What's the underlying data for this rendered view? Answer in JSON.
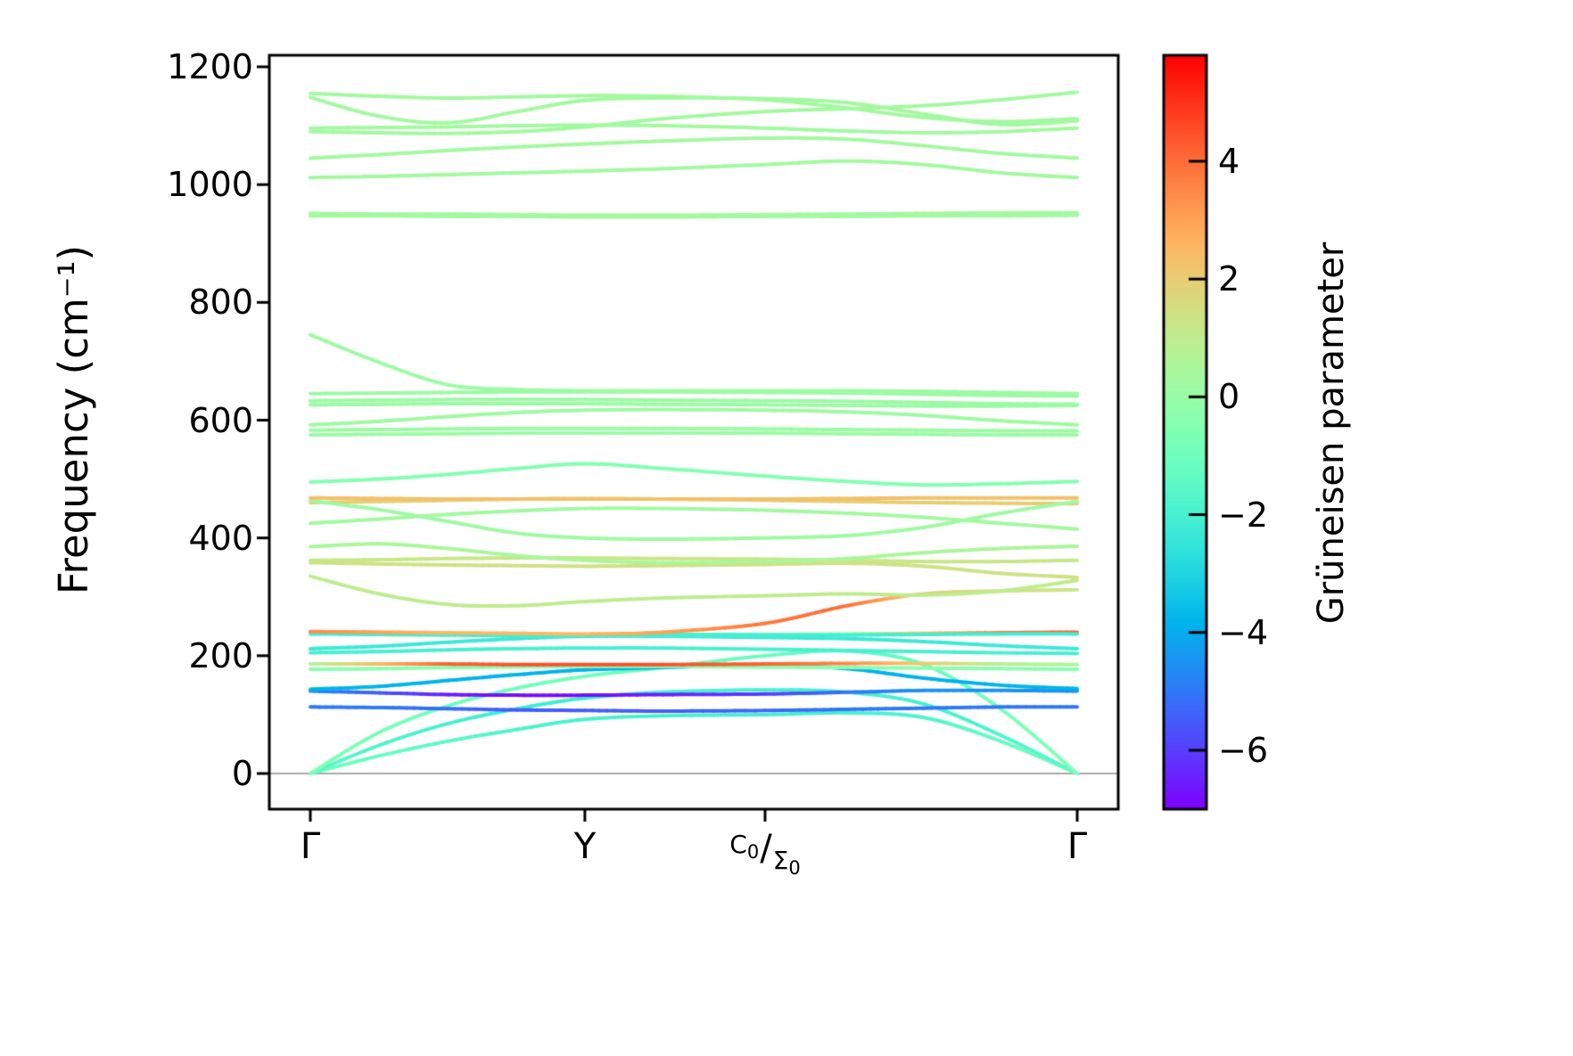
{
  "chart_data": {
    "type": "line",
    "title": "",
    "ylabel": "Frequency (cm⁻¹)",
    "ylim": [
      0,
      1200
    ],
    "yticks": [
      "0",
      "200",
      "400",
      "600",
      "800",
      "1000",
      "1200"
    ],
    "ytick_values": [
      0,
      200,
      400,
      600,
      800,
      1000,
      1200
    ],
    "zero_line_color": "#aaaaaa",
    "grid": "off",
    "x_path": {
      "labels": [
        "Γ",
        "Y",
        "C₀/Σ₀",
        "Γ"
      ],
      "positions": [
        0,
        0.358,
        0.593,
        1.0
      ],
      "gamma_left": "Γ",
      "y_point": "Y",
      "gamma_right": "Γ",
      "c_label": {
        "first": "C",
        "first_sub": "0",
        "slash": "/",
        "second": "Σ",
        "second_sub": "0"
      }
    },
    "colorbar": {
      "label": "Grüneisen parameter",
      "colormap": "rainbow",
      "vmin": -7.0,
      "vmax": 5.8,
      "ticks": [
        "4",
        "2",
        "0",
        "−2",
        "−4",
        "−6"
      ],
      "tick_values": [
        4,
        2,
        0,
        -2,
        -4,
        -6
      ]
    },
    "x_grid": [
      0,
      0.09,
      0.18,
      0.27,
      0.358,
      0.46,
      0.593,
      0.7,
      0.8,
      0.9,
      1.0
    ],
    "bands": [
      {
        "f": [
          0,
          30,
          55,
          75,
          92,
          98,
          100,
          103,
          95,
          55,
          0
        ],
        "g": [
          -1,
          -1.2,
          -1.5,
          -1.8,
          -2,
          -2,
          -2,
          -2,
          -1.8,
          -1.2,
          -1
        ]
      },
      {
        "f": [
          0,
          48,
          85,
          110,
          128,
          138,
          142,
          138,
          118,
          65,
          0
        ],
        "g": [
          -1.5,
          -1.8,
          -2,
          -2.2,
          -2.2,
          -2,
          -2,
          -2,
          -2,
          -1.8,
          -1.5
        ]
      },
      {
        "f": [
          0,
          70,
          115,
          145,
          165,
          180,
          200,
          208,
          185,
          110,
          0
        ],
        "g": [
          -0.5,
          -0.8,
          -1,
          -1,
          -1,
          -1,
          -1.2,
          -1.5,
          -1.2,
          -0.8,
          -0.5
        ]
      },
      {
        "f": [
          113,
          112,
          110,
          108,
          107,
          106,
          107,
          109,
          111,
          113,
          113
        ],
        "g": [
          -5,
          -5,
          -5.2,
          -5.5,
          -5.5,
          -5.5,
          -5.3,
          -5,
          -5,
          -5,
          -5
        ]
      },
      {
        "f": [
          140,
          137,
          134,
          133,
          133,
          134,
          135,
          138,
          141,
          141,
          140
        ],
        "g": [
          -4.5,
          -5.5,
          -6.5,
          -6.8,
          -6.8,
          -6.5,
          -6,
          -5,
          -4.5,
          -4.5,
          -4.5
        ]
      },
      {
        "f": [
          143,
          148,
          158,
          168,
          176,
          180,
          184,
          178,
          162,
          150,
          144
        ],
        "g": -3.8
      },
      {
        "f": [
          177,
          178,
          180,
          181,
          182,
          182,
          181,
          180,
          179,
          178,
          177
        ],
        "g": -0.3
      },
      {
        "f": [
          186,
          186,
          186,
          185,
          185,
          185,
          186,
          187,
          187,
          186,
          185
        ],
        "g": [
          0.5,
          2.5,
          4.2,
          4.5,
          4.5,
          4.5,
          4.2,
          3.5,
          2,
          0.8,
          0.5
        ]
      },
      {
        "f": [
          205,
          207,
          210,
          212,
          213,
          213,
          211,
          209,
          207,
          205,
          204
        ],
        "g": -2
      },
      {
        "f": [
          212,
          216,
          223,
          229,
          233,
          233,
          231,
          229,
          224,
          217,
          212
        ],
        "g": -2.3
      },
      {
        "f": [
          240,
          238,
          237,
          236,
          236,
          236,
          236,
          237,
          238,
          239,
          240
        ],
        "g": [
          4.2,
          3,
          -1.5,
          -2,
          -2,
          -2,
          -1.5,
          0,
          2.5,
          4,
          4.2
        ]
      },
      {
        "f": [
          237,
          236,
          235,
          234,
          234,
          234,
          234,
          235,
          236,
          237,
          237
        ],
        "g": -2.1
      },
      {
        "f": [
          241,
          240,
          239,
          238,
          237,
          240,
          255,
          285,
          305,
          310,
          312
        ],
        "g": [
          3.5,
          3,
          2.5,
          2.5,
          2.5,
          3,
          3.8,
          4,
          2,
          1.5,
          1.2
        ]
      },
      {
        "f": [
          335,
          305,
          287,
          285,
          292,
          298,
          302,
          305,
          303,
          310,
          328
        ],
        "g": 1
      },
      {
        "f": [
          358,
          356,
          354,
          353,
          352,
          353,
          355,
          357,
          352,
          340,
          333
        ],
        "g": 1.4
      },
      {
        "f": [
          362,
          363,
          365,
          366,
          366,
          365,
          364,
          362,
          360,
          360,
          362
        ],
        "g": 1.2
      },
      {
        "f": [
          385,
          390,
          382,
          370,
          362,
          358,
          360,
          365,
          375,
          382,
          386
        ],
        "g": 0.5
      },
      {
        "f": [
          425,
          432,
          440,
          446,
          450,
          450,
          447,
          442,
          435,
          425,
          415
        ],
        "g": 0.3
      },
      {
        "f": [
          460,
          462,
          464,
          466,
          467,
          466,
          464,
          462,
          460,
          459,
          458
        ],
        "g": 2
      },
      {
        "f": [
          463,
          448,
          428,
          408,
          400,
          398,
          400,
          404,
          418,
          442,
          462
        ],
        "g": 0.2
      },
      {
        "f": [
          468,
          467,
          466,
          466,
          466,
          466,
          466,
          467,
          468,
          468,
          468
        ],
        "g": 2.3
      },
      {
        "f": [
          495,
          500,
          508,
          518,
          526,
          518,
          505,
          496,
          490,
          492,
          496
        ],
        "g": -0.5
      },
      {
        "f": [
          575,
          576,
          577,
          578,
          578,
          578,
          578,
          577,
          576,
          575,
          575
        ],
        "g": 0.1
      },
      {
        "f": [
          583,
          584,
          585,
          586,
          586,
          586,
          585,
          584,
          583,
          582,
          582
        ],
        "g": 0.1
      },
      {
        "f": [
          592,
          598,
          606,
          613,
          617,
          618,
          617,
          614,
          608,
          599,
          592
        ],
        "g": 0.2
      },
      {
        "f": [
          626,
          627,
          628,
          628,
          628,
          627,
          626,
          625,
          624,
          624,
          625
        ],
        "g": 0.1
      },
      {
        "f": [
          633,
          634,
          635,
          635,
          635,
          634,
          633,
          632,
          630,
          628,
          627
        ],
        "g": 0.1
      },
      {
        "f": [
          645,
          646,
          647,
          648,
          648,
          648,
          647,
          646,
          644,
          642,
          641
        ],
        "g": 0.1
      },
      {
        "f": [
          745,
          698,
          660,
          652,
          650,
          650,
          650,
          650,
          649,
          647,
          645
        ],
        "g": 0.15
      },
      {
        "f": [
          947,
          947,
          946,
          946,
          945,
          945,
          946,
          946,
          947,
          947,
          948
        ],
        "g": 0.3
      },
      {
        "f": [
          951,
          950,
          950,
          949,
          948,
          948,
          949,
          950,
          951,
          952,
          952
        ],
        "g": 0.3
      },
      {
        "f": [
          1012,
          1014,
          1017,
          1020,
          1023,
          1027,
          1034,
          1040,
          1034,
          1020,
          1012
        ],
        "g": 0.3
      },
      {
        "f": [
          1045,
          1051,
          1058,
          1064,
          1069,
          1074,
          1079,
          1077,
          1066,
          1053,
          1045
        ],
        "g": 0.3
      },
      {
        "f": [
          1090,
          1088,
          1087,
          1090,
          1098,
          1112,
          1124,
          1129,
          1134,
          1144,
          1157
        ],
        "g": 0.3
      },
      {
        "f": [
          1096,
          1097,
          1098,
          1100,
          1101,
          1100,
          1096,
          1091,
          1088,
          1090,
          1096
        ],
        "g": 0.3
      },
      {
        "f": [
          1148,
          1116,
          1105,
          1124,
          1143,
          1147,
          1146,
          1139,
          1120,
          1102,
          1108
        ],
        "g": 0.3
      },
      {
        "f": [
          1155,
          1150,
          1147,
          1149,
          1151,
          1150,
          1144,
          1130,
          1114,
          1107,
          1112
        ],
        "g": 0.3
      }
    ]
  }
}
